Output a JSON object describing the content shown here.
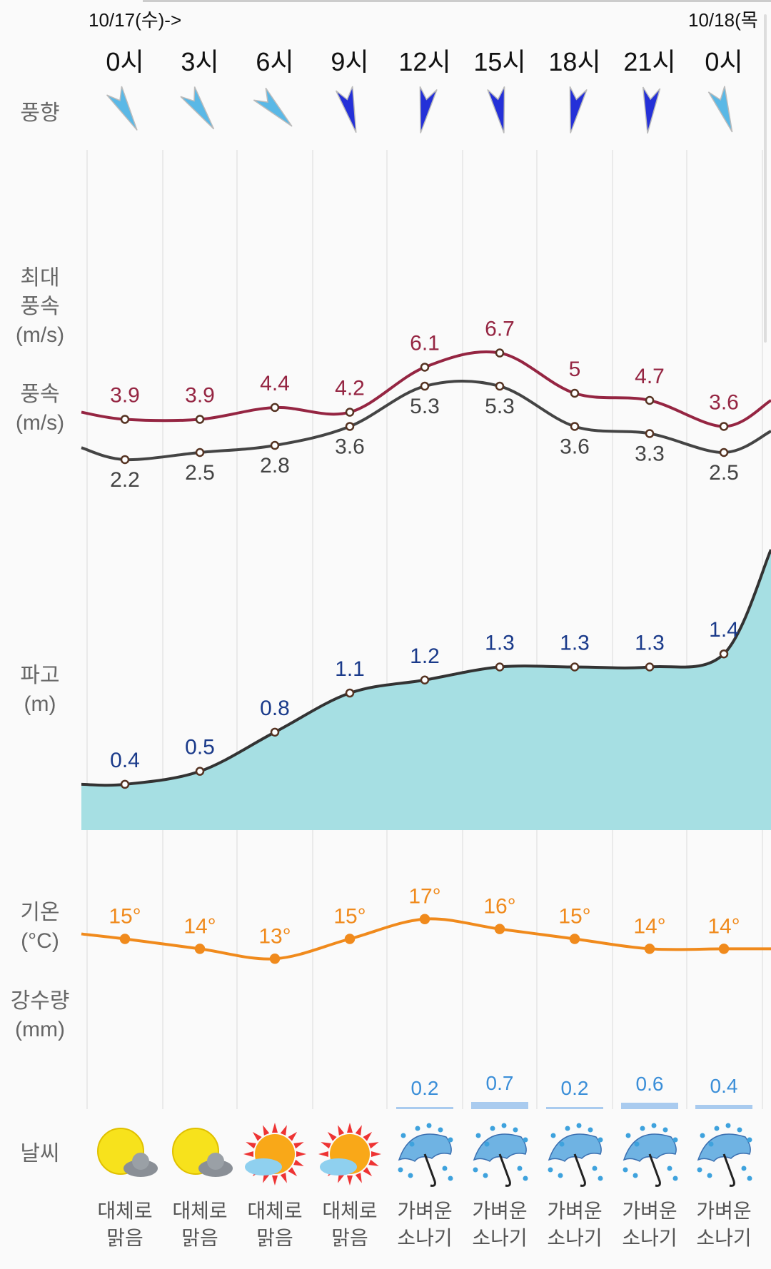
{
  "dates": {
    "start": "10/17(수)->",
    "next": "10/18(목"
  },
  "hours": [
    "0시",
    "3시",
    "6시",
    "9시",
    "12시",
    "15시",
    "18시",
    "21시",
    "0시"
  ],
  "labels": {
    "wind_dir": "풍향",
    "max_wind": [
      "최대",
      "풍속",
      "(m/s)"
    ],
    "wind": [
      "풍속",
      "(m/s)"
    ],
    "wave": [
      "파고",
      "(m)"
    ],
    "temp": [
      "기온",
      "(°C)"
    ],
    "precip": [
      "강수량",
      "(mm)"
    ],
    "weather": "날씨"
  },
  "wind_direction": [
    {
      "icon": "wind-arrow-icon",
      "deg": 150,
      "color": "#5ab8e6"
    },
    {
      "icon": "wind-arrow-icon",
      "deg": 145,
      "color": "#5ab8e6"
    },
    {
      "icon": "wind-arrow-icon",
      "deg": 135,
      "color": "#5ab8e6"
    },
    {
      "icon": "wind-arrow-icon",
      "deg": 165,
      "color": "#2430d8"
    },
    {
      "icon": "wind-arrow-icon",
      "deg": 190,
      "color": "#2430d8"
    },
    {
      "icon": "wind-arrow-icon",
      "deg": 170,
      "color": "#2430d8"
    },
    {
      "icon": "wind-arrow-icon",
      "deg": 190,
      "color": "#2430d8"
    },
    {
      "icon": "wind-arrow-icon",
      "deg": 185,
      "color": "#2430d8"
    },
    {
      "icon": "wind-arrow-icon",
      "deg": 160,
      "color": "#5ab8e6"
    }
  ],
  "chart_data": {
    "type": "line",
    "x": [
      "0시",
      "3시",
      "6시",
      "9시",
      "12시",
      "15시",
      "18시",
      "21시",
      "0시"
    ],
    "series": [
      {
        "name": "최대풍속 (m/s)",
        "values": [
          3.9,
          3.9,
          4.4,
          4.2,
          6.1,
          6.7,
          5,
          4.7,
          3.6
        ],
        "labels": [
          "3.9",
          "3.9",
          "4.4",
          "4.2",
          "6.1",
          "6.7",
          "5",
          "4.7",
          "3.6"
        ],
        "color": "#952542"
      },
      {
        "name": "풍속 (m/s)",
        "values": [
          2.2,
          2.5,
          2.8,
          3.6,
          5.3,
          5.3,
          3.6,
          3.3,
          2.5
        ],
        "labels": [
          "2.2",
          "2.5",
          "2.8",
          "3.6",
          "5.3",
          "5.3",
          "3.6",
          "3.3",
          "2.5"
        ],
        "color": "#444444"
      },
      {
        "name": "파고 (m)",
        "values": [
          0.4,
          0.5,
          0.8,
          1.1,
          1.2,
          1.3,
          1.3,
          1.3,
          1.4
        ],
        "labels": [
          "0.4",
          "0.5",
          "0.8",
          "1.1",
          "1.2",
          "1.3",
          "1.3",
          "1.3",
          "1.4"
        ],
        "color": "#1a3a8a",
        "fill": "#a6dfe3"
      },
      {
        "name": "기온 (°C)",
        "values": [
          15,
          14,
          13,
          15,
          17,
          16,
          15,
          14,
          14
        ],
        "labels": [
          "15°",
          "14°",
          "13°",
          "15°",
          "17°",
          "16°",
          "15°",
          "14°",
          "14°"
        ],
        "color": "#f08a1c"
      },
      {
        "name": "강수량 (mm)",
        "values": [
          0,
          0,
          0,
          0,
          0.2,
          0.7,
          0.2,
          0.6,
          0.4
        ],
        "labels": [
          "",
          "",
          "",
          "",
          "0.2",
          "0.7",
          "0.2",
          "0.6",
          "0.4"
        ],
        "color": "#a9cbef"
      }
    ]
  },
  "weather": [
    {
      "icon": "sun-cloud-icon",
      "line1": "대체로",
      "line2": "맑음"
    },
    {
      "icon": "sun-cloud-icon",
      "line1": "대체로",
      "line2": "맑음"
    },
    {
      "icon": "bright-sun-icon",
      "line1": "대체로",
      "line2": "맑음"
    },
    {
      "icon": "bright-sun-icon",
      "line1": "대체로",
      "line2": "맑음"
    },
    {
      "icon": "umbrella-rain-icon",
      "line1": "가벼운",
      "line2": "소나기"
    },
    {
      "icon": "umbrella-rain-icon",
      "line1": "가벼운",
      "line2": "소나기"
    },
    {
      "icon": "umbrella-rain-icon",
      "line1": "가벼운",
      "line2": "소나기"
    },
    {
      "icon": "umbrella-rain-icon",
      "line1": "가벼운",
      "line2": "소나기"
    },
    {
      "icon": "umbrella-rain-icon",
      "line1": "가벼운",
      "line2": "소나기"
    }
  ]
}
